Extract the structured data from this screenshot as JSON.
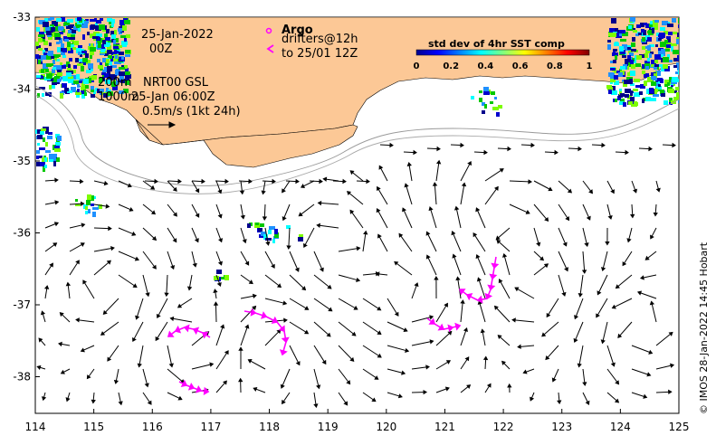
{
  "map": {
    "date_label": "25-Jan-2022",
    "time_label": "00Z",
    "legend": {
      "argo": "Argo",
      "drifters": "drifters@12h",
      "drifters_to": "to 25/01 12Z"
    },
    "contour_legend": {
      "depth_200": "200m",
      "product": "NRT00 GSL",
      "depth_1000": "1000m",
      "product_time": "25-Jan 06:00Z",
      "scale_label": "0.5m/s (1kt 24h)"
    },
    "colorbar": {
      "title": "std dev of 4hr SST comp",
      "ticks": [
        "0",
        "0.2",
        "0.4",
        "0.6",
        "0.8",
        "1"
      ]
    },
    "credit": "© IMOS 28-Jan-2022 14:45 Hobart",
    "x_ticks": [
      "114",
      "115",
      "116",
      "117",
      "118",
      "119",
      "120",
      "121",
      "122",
      "123",
      "124",
      "125"
    ],
    "y_ticks": [
      "-33",
      "-34",
      "-35",
      "-36",
      "-37",
      "-38"
    ],
    "colors": {
      "land": "#fcc896",
      "drifter": "#ff00ff",
      "sst_low": "#00008b",
      "sst_mid": "#00c800",
      "coast_line": "#000000"
    }
  }
}
